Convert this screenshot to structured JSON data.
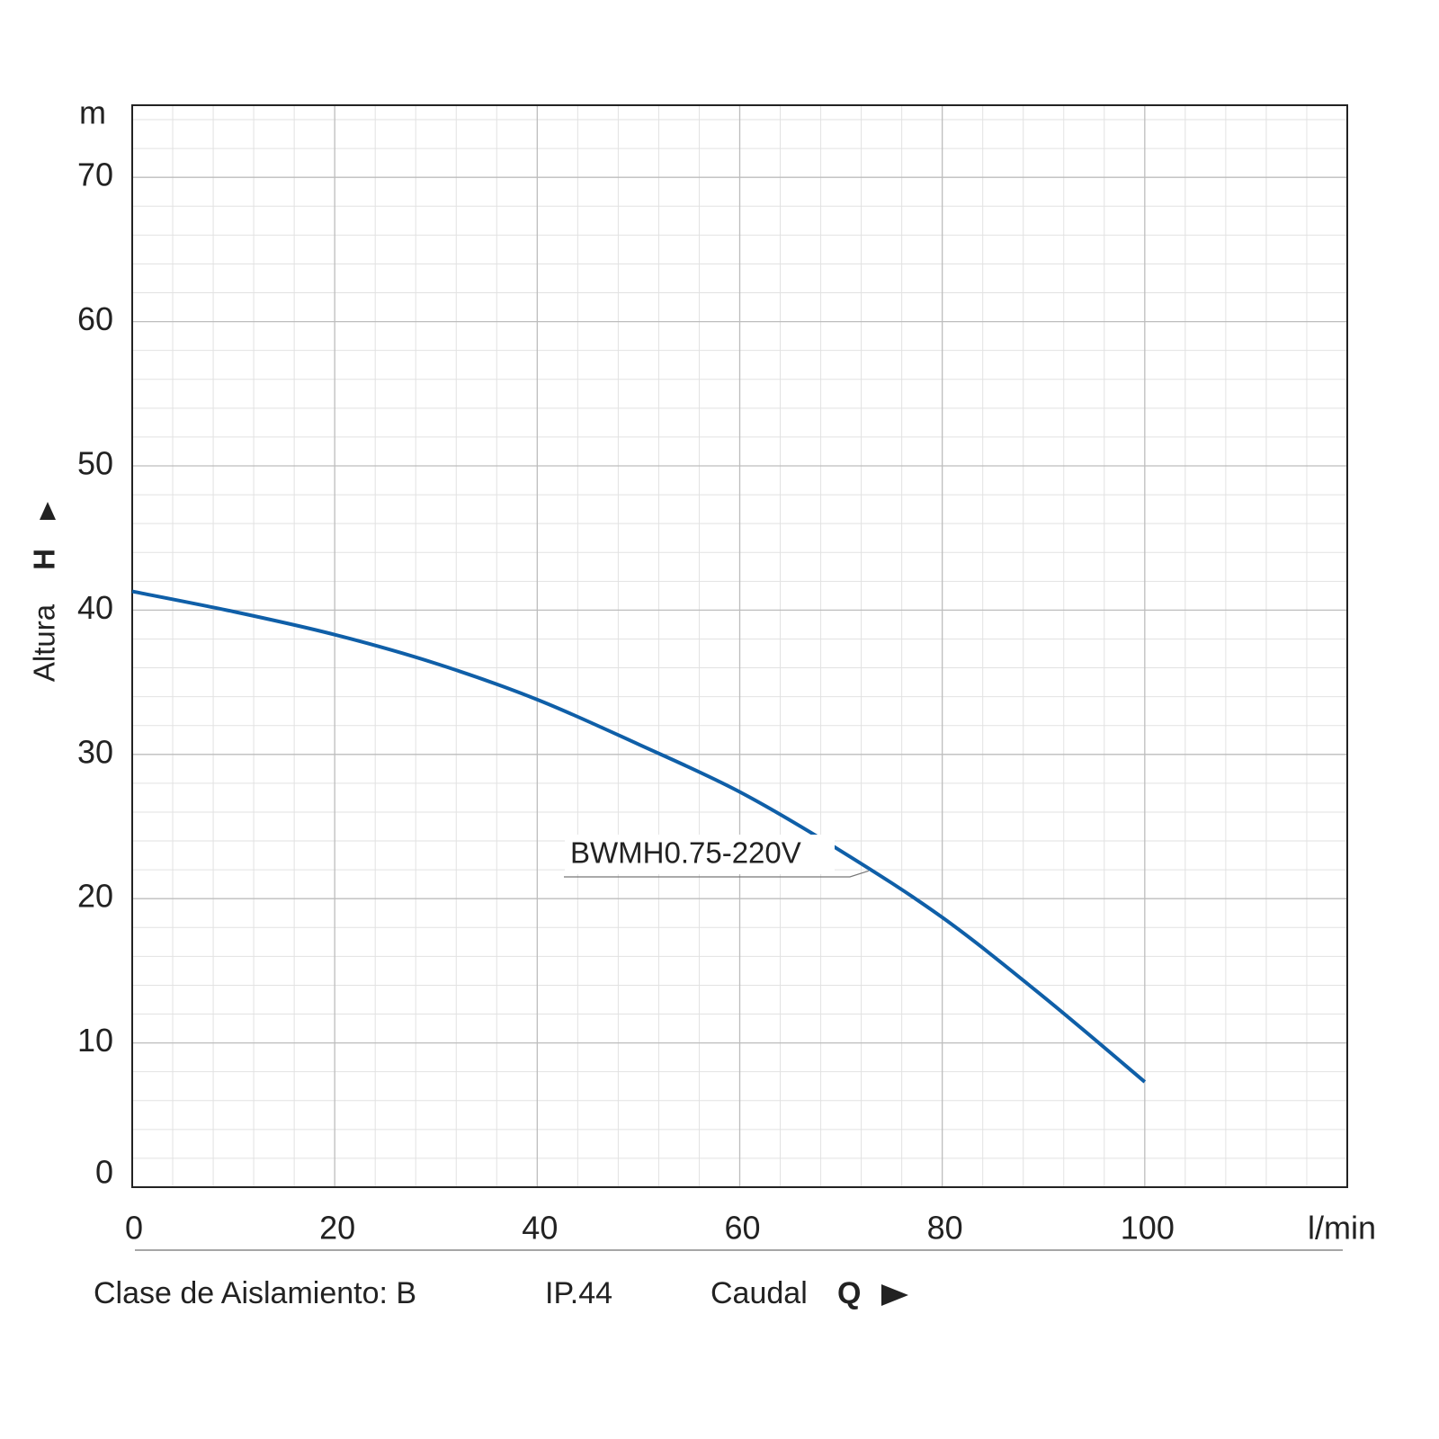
{
  "chart_data": {
    "type": "line",
    "y_unit": "m",
    "x_unit": "l/min",
    "y_label": "Altura",
    "y_symbol": "H",
    "x_label": "Caudal",
    "x_symbol": "Q",
    "footer": [
      "Clase de Aislamiento: B",
      "IP.44"
    ],
    "x": [
      0,
      10,
      20,
      30,
      40,
      50,
      60,
      70,
      80,
      90,
      100
    ],
    "series": [
      {
        "name": "BWMH0.75-220V",
        "color": "#0f5fa8",
        "values": [
          41.3,
          39.9,
          38.3,
          36.3,
          33.8,
          30.7,
          27.4,
          23.3,
          18.7,
          13.2,
          7.3
        ]
      }
    ],
    "xlim": [
      0,
      120
    ],
    "ylim": [
      0,
      75
    ],
    "xticks": [
      0,
      20,
      40,
      60,
      80,
      100
    ],
    "yticks": [
      0,
      10,
      20,
      30,
      40,
      50,
      60,
      70
    ],
    "x_minor_ticks": [
      4,
      8,
      12,
      16,
      24,
      28,
      32,
      36,
      44,
      48,
      52,
      56,
      64,
      68,
      72,
      76,
      84,
      88,
      92,
      96,
      104,
      108,
      112,
      116
    ],
    "y_minor_ticks": [
      2,
      4,
      6,
      8,
      12,
      14,
      16,
      18,
      22,
      24,
      26,
      28,
      32,
      34,
      36,
      38,
      42,
      44,
      46,
      48,
      52,
      54,
      56,
      58,
      62,
      64,
      66,
      68,
      72,
      74
    ],
    "grid": true
  }
}
